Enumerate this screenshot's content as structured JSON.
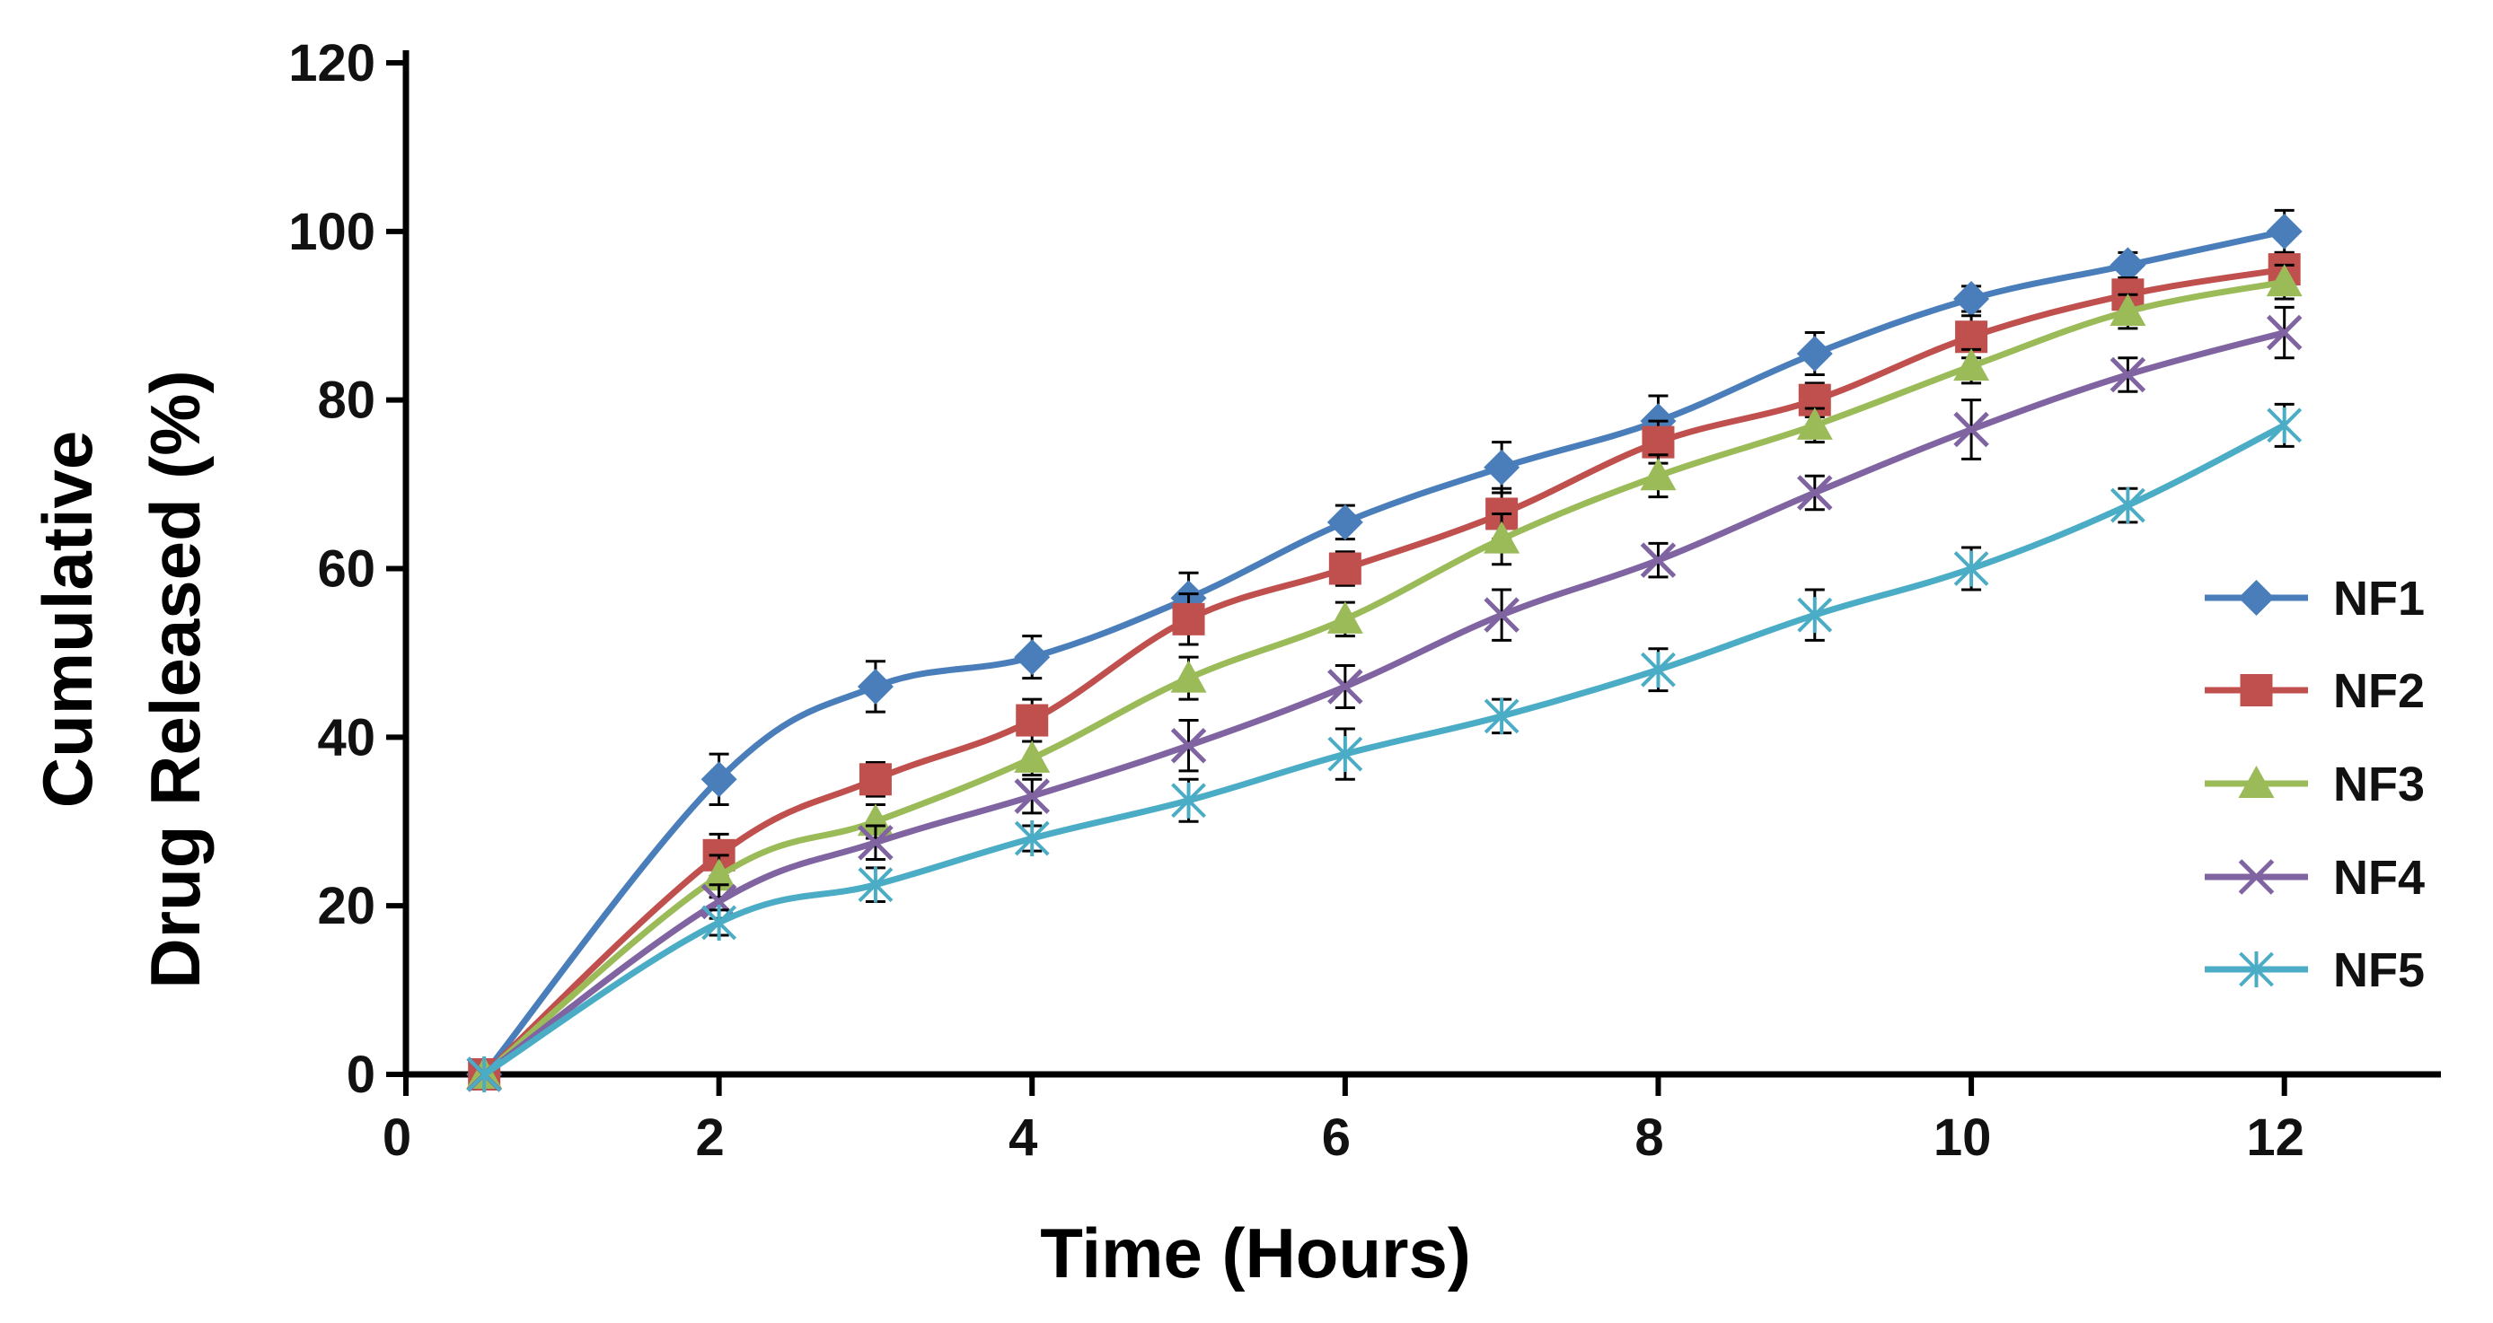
{
  "chart_data": {
    "type": "line",
    "title": "",
    "xlabel": "Time (Hours)",
    "ylabel_lines": [
      "Cumulative",
      "Drug Released (%)"
    ],
    "xlim": [
      0,
      13
    ],
    "ylim": [
      0,
      120
    ],
    "xticks": [
      0,
      2,
      4,
      6,
      8,
      10,
      12
    ],
    "yticks": [
      0,
      20,
      40,
      60,
      80,
      100,
      120
    ],
    "grid": false,
    "legend_position": "right",
    "x": [
      0.5,
      2,
      3,
      4,
      5,
      6,
      7,
      8,
      9,
      10,
      11,
      12
    ],
    "series": [
      {
        "name": "NF1",
        "color": "#4a7ebb",
        "marker": "diamond",
        "values": [
          0,
          35,
          46,
          49.5,
          56.5,
          65.5,
          72,
          77.5,
          85.5,
          92,
          96,
          100
        ],
        "errors": [
          0,
          3,
          3,
          2.5,
          3,
          2,
          3,
          3,
          2.5,
          1.5,
          1.5,
          2.5
        ]
      },
      {
        "name": "NF2",
        "color": "#c0504d",
        "marker": "square",
        "values": [
          0,
          26,
          35,
          42,
          54,
          60,
          66.5,
          75,
          80,
          87.5,
          92.5,
          95.5
        ],
        "errors": [
          0,
          2.5,
          2,
          2.5,
          3,
          2,
          3,
          2.5,
          2,
          2.5,
          2,
          2
        ]
      },
      {
        "name": "NF3",
        "color": "#9bbb59",
        "marker": "triangle",
        "values": [
          0,
          23.5,
          30,
          37.5,
          47,
          54,
          63.5,
          71,
          77,
          84,
          90.5,
          94
        ],
        "errors": [
          0,
          2.5,
          2,
          2,
          2.5,
          2,
          3,
          2.5,
          2,
          2,
          2,
          2
        ]
      },
      {
        "name": "NF4",
        "color": "#8064a2",
        "marker": "x",
        "values": [
          0,
          20.5,
          27.5,
          33,
          39,
          46,
          54.5,
          61,
          69,
          76.5,
          83,
          88
        ],
        "errors": [
          0,
          2,
          2,
          2,
          3,
          2.5,
          3,
          2,
          2,
          3.5,
          2,
          3
        ]
      },
      {
        "name": "NF5",
        "color": "#4bacc6",
        "marker": "star",
        "values": [
          0,
          18,
          22.5,
          28,
          32.5,
          38,
          42.5,
          48,
          54.5,
          60,
          67.5,
          77
        ],
        "errors": [
          0,
          1.5,
          2,
          1.5,
          2.5,
          3,
          2,
          2.5,
          3,
          2.5,
          2,
          2.5
        ]
      }
    ]
  }
}
